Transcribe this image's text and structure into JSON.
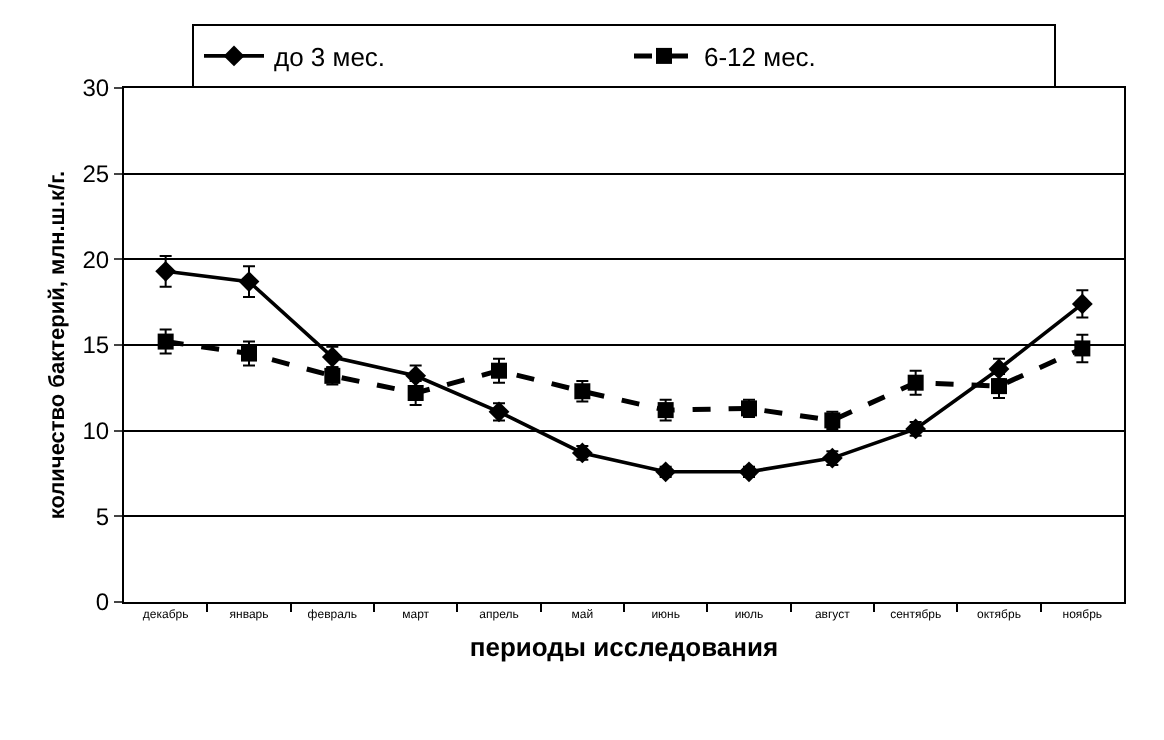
{
  "chart_data": {
    "type": "line",
    "xlabel": "периоды исследования",
    "ylabel": "количество бактерий, млн.ш.к/г.",
    "categories": [
      "декабрь",
      "январь",
      "февраль",
      "март",
      "апрель",
      "май",
      "июнь",
      "июль",
      "август",
      "сентябрь",
      "октябрь",
      "ноябрь"
    ],
    "series": [
      {
        "name": "до 3 мес.",
        "color": "#000000",
        "marker": "diamond",
        "line_style": "solid",
        "values": [
          19.3,
          18.7,
          14.3,
          13.2,
          11.1,
          8.7,
          7.6,
          7.6,
          8.4,
          10.1,
          13.6,
          17.4
        ],
        "errors": [
          0.9,
          0.9,
          0.6,
          0.6,
          0.5,
          0.4,
          0.3,
          0.3,
          0.4,
          0.4,
          0.6,
          0.8
        ]
      },
      {
        "name": "6-12 мес.",
        "color": "#000000",
        "marker": "square",
        "line_style": "dashed",
        "values": [
          15.2,
          14.5,
          13.2,
          12.2,
          13.5,
          12.3,
          11.2,
          11.3,
          10.6,
          12.8,
          12.6,
          14.8
        ],
        "errors": [
          0.7,
          0.7,
          0.5,
          0.7,
          0.7,
          0.6,
          0.6,
          0.5,
          0.5,
          0.7,
          0.7,
          0.8
        ]
      }
    ],
    "ylim": [
      0,
      30
    ],
    "yticks": [
      0,
      5,
      10,
      15,
      20,
      25,
      30
    ],
    "grid": "y",
    "legend": "top"
  }
}
